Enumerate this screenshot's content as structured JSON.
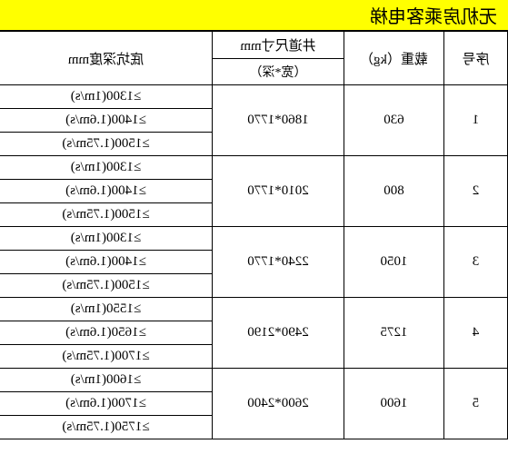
{
  "title": "无机房乘客电梯",
  "headers": {
    "seq": "序号",
    "load": "载重（kg）",
    "dim_top": "井道尺寸mm",
    "dim_sub": "（宽*深）",
    "depth": "底坑深度mm"
  },
  "rows": [
    {
      "seq": "1",
      "load": "630",
      "dim": "1860*1770",
      "depths": [
        "≥1300(1m/s)",
        "≥1400(1.6m/s)",
        "≥1500(1.75m/s)"
      ]
    },
    {
      "seq": "2",
      "load": "800",
      "dim": "2010*1770",
      "depths": [
        "≥1300(1m/s)",
        "≥1400(1.6m/s)",
        "≥1500(1.75m/s)"
      ]
    },
    {
      "seq": "3",
      "load": "1050",
      "dim": "2240*1770",
      "depths": [
        "≥1300(1m/s)",
        "≥1400(1.6m/s)",
        "≥1500(1.75m/s)"
      ]
    },
    {
      "seq": "4",
      "load": "1275",
      "dim": "2490*2190",
      "depths": [
        "≥1550(1m/s)",
        "≥1650(1.6m/s)",
        "≥1700(1.75m/s)"
      ]
    },
    {
      "seq": "5",
      "load": "1600",
      "dim": "2600*2400",
      "depths": [
        "≥1600(1m/s)",
        "≥1700(1.6m/s)",
        "≥1750(1.75m/s)"
      ]
    }
  ]
}
